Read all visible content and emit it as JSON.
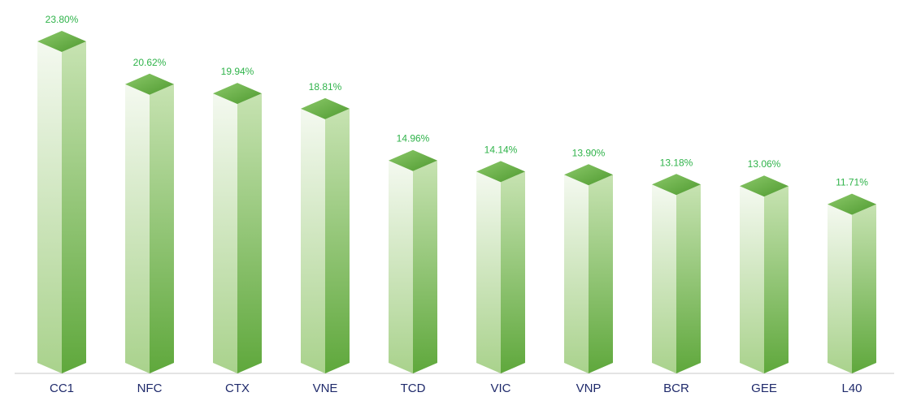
{
  "chart_data": {
    "type": "bar",
    "title": "",
    "xlabel": "",
    "ylabel": "",
    "categories": [
      "CC1",
      "NFC",
      "CTX",
      "VNE",
      "TCD",
      "VIC",
      "VNP",
      "BCR",
      "GEE",
      "L40"
    ],
    "values": [
      23.8,
      20.62,
      19.94,
      18.81,
      14.96,
      14.14,
      13.9,
      13.18,
      13.06,
      11.71
    ],
    "value_labels": [
      "23.80%",
      "20.62%",
      "19.94%",
      "18.81%",
      "14.96%",
      "14.14%",
      "13.90%",
      "13.18%",
      "13.06%",
      "11.71%"
    ],
    "ylim": [
      0,
      23.8
    ],
    "grid": false,
    "legend": "none",
    "colors": {
      "top_light": "#8cc96a",
      "top_dark": "#4f9a30",
      "front_light": "#f4f9f0",
      "front_dark": "#a9d28c",
      "side_light": "#c7e3b2",
      "side_dark": "#5fa83c",
      "value_text": "#2fb34a",
      "category_text": "#1f2a6b"
    }
  }
}
